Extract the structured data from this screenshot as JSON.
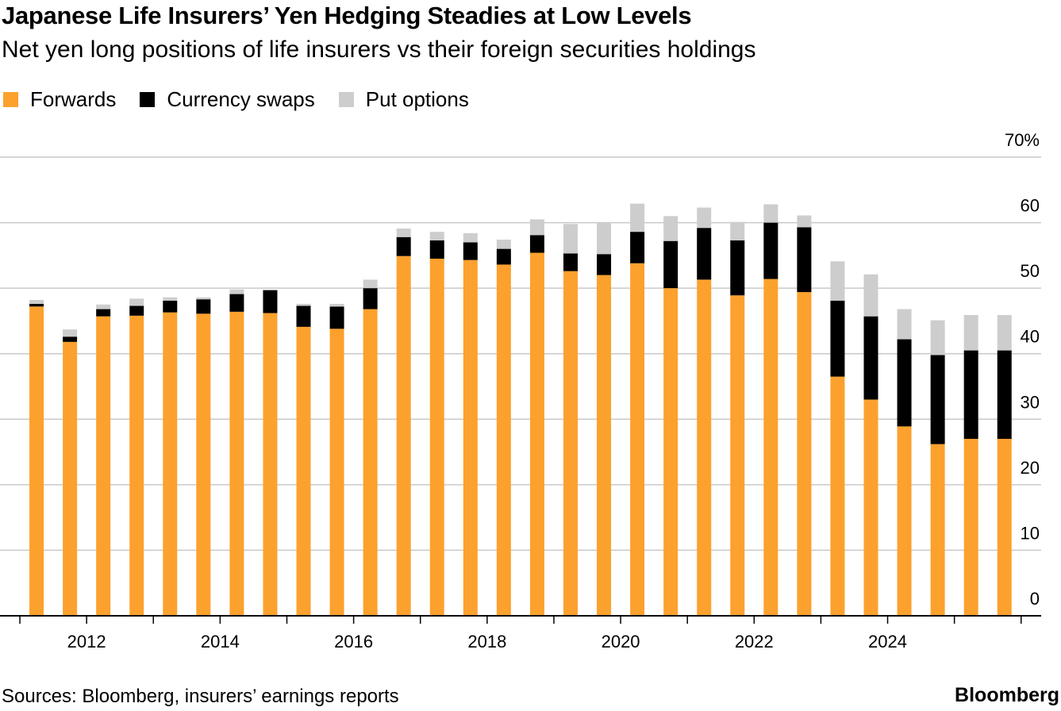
{
  "chart_data": {
    "type": "bar",
    "stacked": true,
    "title": "Japanese Life Insurers’ Yen Hedging Steadies at Low Levels",
    "subtitle": "Net yen long positions of life insurers vs their foreign securities holdings",
    "x_tick_labels": [
      "2012",
      "2014",
      "2016",
      "2018",
      "2020",
      "2022",
      "2024"
    ],
    "x_tick_years": [
      2012,
      2014,
      2016,
      2018,
      2020,
      2022,
      2024
    ],
    "x": [
      2011.25,
      2011.75,
      2012.25,
      2012.75,
      2013.25,
      2013.75,
      2014.25,
      2014.75,
      2015.25,
      2015.75,
      2016.25,
      2016.75,
      2017.25,
      2017.75,
      2018.25,
      2018.75,
      2019.25,
      2019.75,
      2020.25,
      2020.75,
      2021.25,
      2021.75,
      2022.25,
      2022.75,
      2023.25,
      2023.75,
      2024.25,
      2024.75,
      2025.25,
      2025.75
    ],
    "x_range": [
      2010.75,
      2026.3
    ],
    "y_ticks": [
      "0",
      "10",
      "20",
      "30",
      "40",
      "50",
      "60",
      "70%"
    ],
    "y_tick_values": [
      0,
      10,
      20,
      30,
      40,
      50,
      60,
      70
    ],
    "ylim": [
      0,
      70
    ],
    "grid": true,
    "legend_position": "top-left",
    "series": [
      {
        "name": "Forwards",
        "color": "#fca12d",
        "values": [
          47.2,
          41.8,
          45.7,
          45.8,
          46.3,
          46.1,
          46.4,
          46.2,
          44.1,
          43.8,
          46.8,
          54.9,
          54.5,
          54.3,
          53.6,
          55.4,
          52.6,
          52.0,
          53.8,
          50.0,
          51.3,
          48.9,
          51.4,
          49.4,
          36.5,
          33.0,
          28.9,
          26.2,
          27.0,
          27.0
        ]
      },
      {
        "name": "Currency swaps",
        "color": "#000000",
        "values": [
          0.4,
          0.8,
          1.1,
          1.5,
          1.8,
          2.2,
          2.7,
          3.5,
          3.2,
          3.4,
          3.2,
          2.9,
          2.8,
          2.7,
          2.4,
          2.7,
          2.7,
          3.2,
          4.8,
          7.2,
          7.9,
          8.4,
          8.6,
          9.9,
          11.6,
          12.7,
          13.3,
          13.6,
          13.5,
          13.5
        ]
      },
      {
        "name": "Put options",
        "color": "#cdcdcd",
        "values": [
          0.6,
          1.1,
          0.7,
          1.1,
          0.5,
          0.3,
          0.7,
          0.0,
          0.3,
          0.4,
          1.3,
          1.3,
          1.3,
          1.4,
          1.4,
          2.4,
          4.5,
          4.7,
          4.3,
          3.8,
          3.1,
          2.8,
          2.8,
          1.8,
          6.0,
          6.4,
          4.6,
          5.3,
          5.4,
          5.4
        ]
      }
    ]
  },
  "footer": {
    "source": "Sources: Bloomberg, insurers’ earnings reports",
    "brand": "Bloomberg"
  }
}
